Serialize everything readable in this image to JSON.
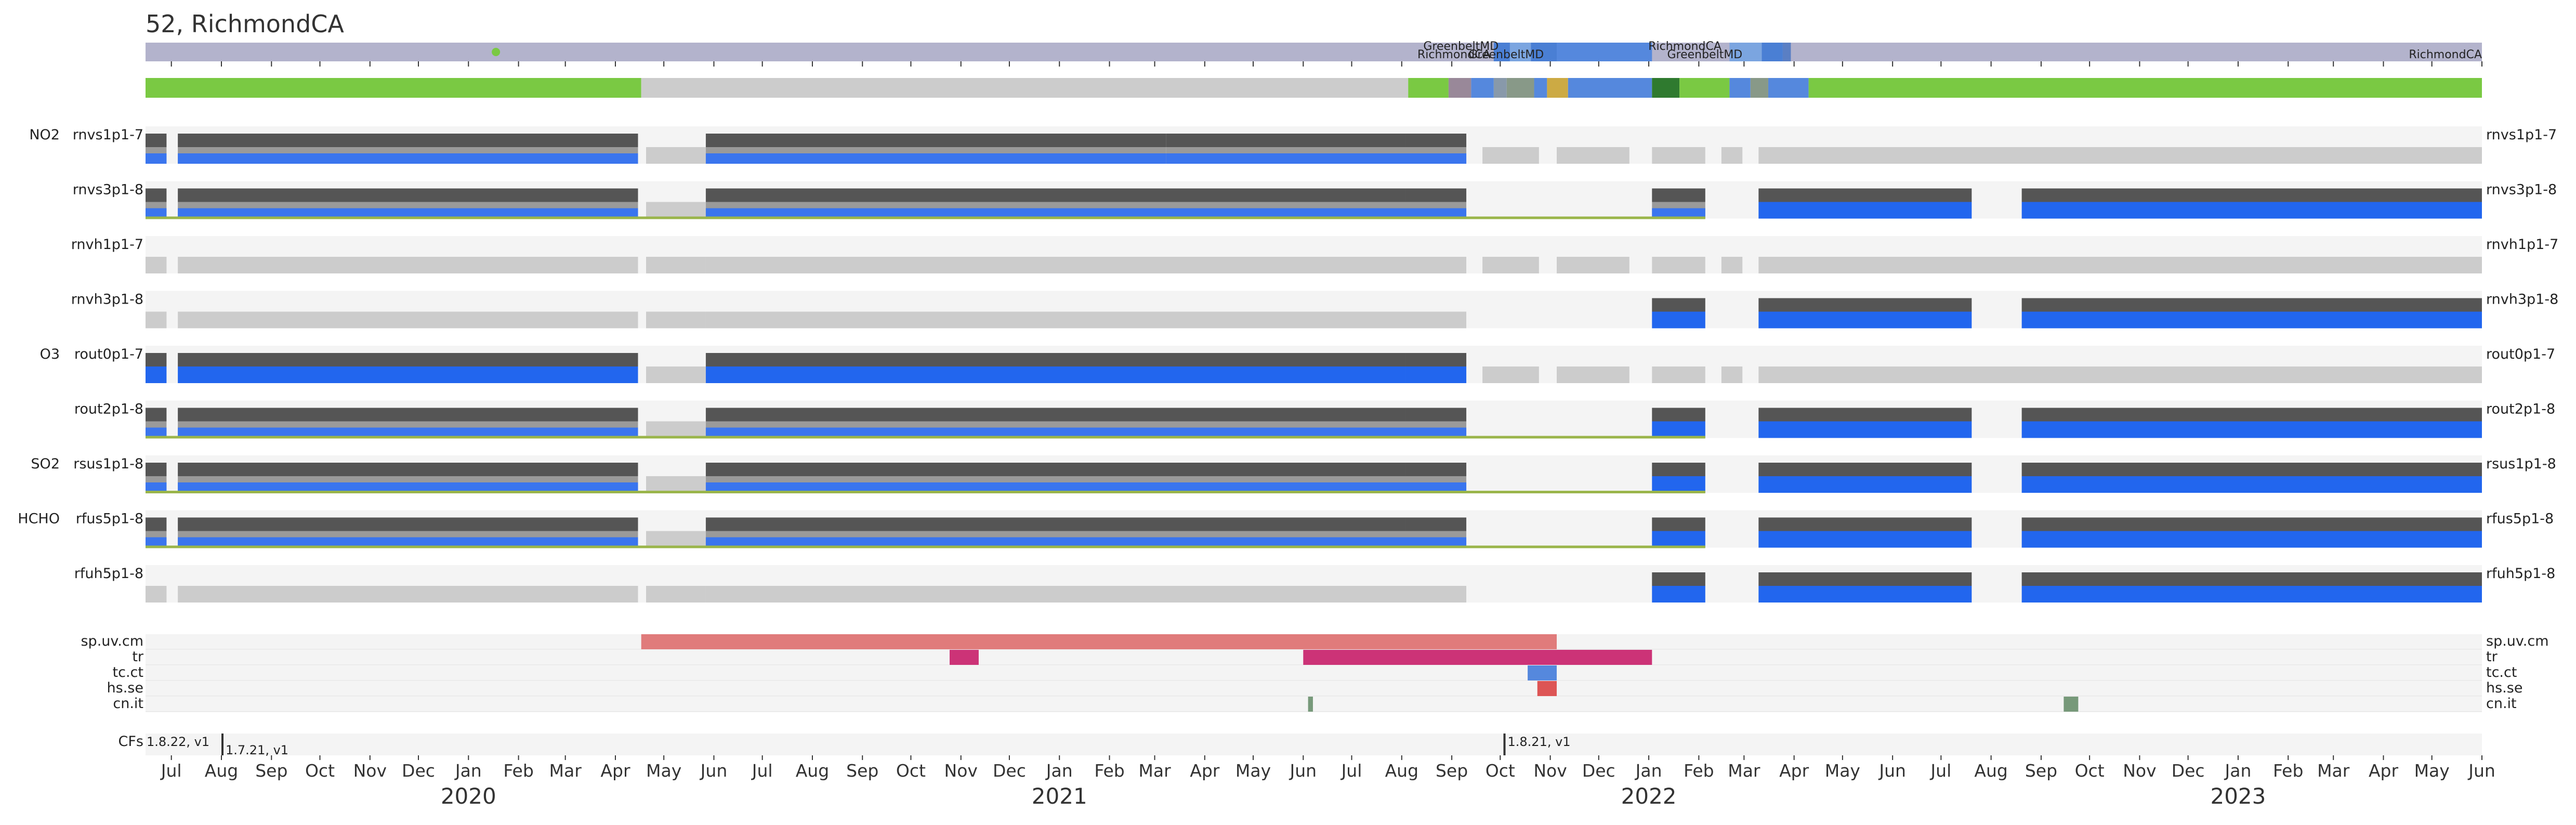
{
  "title": "52, RichmondCA",
  "chart_data": {
    "type": "timeline",
    "title": "52, RichmondCA",
    "x_axis": {
      "start": "2019-06-15",
      "end": "2023-06-01",
      "month_ticks": [
        {
          "date": "2019-07-01",
          "label": "Jul"
        },
        {
          "date": "2019-08-01",
          "label": "Aug"
        },
        {
          "date": "2019-09-01",
          "label": "Sep"
        },
        {
          "date": "2019-10-01",
          "label": "Oct"
        },
        {
          "date": "2019-11-01",
          "label": "Nov"
        },
        {
          "date": "2019-12-01",
          "label": "Dec"
        },
        {
          "date": "2020-01-01",
          "label": "Jan"
        },
        {
          "date": "2020-02-01",
          "label": "Feb"
        },
        {
          "date": "2020-03-01",
          "label": "Mar"
        },
        {
          "date": "2020-04-01",
          "label": "Apr"
        },
        {
          "date": "2020-05-01",
          "label": "May"
        },
        {
          "date": "2020-06-01",
          "label": "Jun"
        },
        {
          "date": "2020-07-01",
          "label": "Jul"
        },
        {
          "date": "2020-08-01",
          "label": "Aug"
        },
        {
          "date": "2020-09-01",
          "label": "Sep"
        },
        {
          "date": "2020-10-01",
          "label": "Oct"
        },
        {
          "date": "2020-11-01",
          "label": "Nov"
        },
        {
          "date": "2020-12-01",
          "label": "Dec"
        },
        {
          "date": "2021-01-01",
          "label": "Jan"
        },
        {
          "date": "2021-02-01",
          "label": "Feb"
        },
        {
          "date": "2021-03-01",
          "label": "Mar"
        },
        {
          "date": "2021-04-01",
          "label": "Apr"
        },
        {
          "date": "2021-05-01",
          "label": "May"
        },
        {
          "date": "2021-06-01",
          "label": "Jun"
        },
        {
          "date": "2021-07-01",
          "label": "Jul"
        },
        {
          "date": "2021-08-01",
          "label": "Aug"
        },
        {
          "date": "2021-09-01",
          "label": "Sep"
        },
        {
          "date": "2021-10-01",
          "label": "Oct"
        },
        {
          "date": "2021-11-01",
          "label": "Nov"
        },
        {
          "date": "2021-12-01",
          "label": "Dec"
        },
        {
          "date": "2022-01-01",
          "label": "Jan"
        },
        {
          "date": "2022-02-01",
          "label": "Feb"
        },
        {
          "date": "2022-03-01",
          "label": "Mar"
        },
        {
          "date": "2022-04-01",
          "label": "Apr"
        },
        {
          "date": "2022-05-01",
          "label": "May"
        },
        {
          "date": "2022-06-01",
          "label": "Jun"
        },
        {
          "date": "2022-07-01",
          "label": "Jul"
        },
        {
          "date": "2022-08-01",
          "label": "Aug"
        },
        {
          "date": "2022-09-01",
          "label": "Sep"
        },
        {
          "date": "2022-10-01",
          "label": "Oct"
        },
        {
          "date": "2022-11-01",
          "label": "Nov"
        },
        {
          "date": "2022-12-01",
          "label": "Dec"
        },
        {
          "date": "2023-01-01",
          "label": "Jan"
        },
        {
          "date": "2023-02-01",
          "label": "Feb"
        },
        {
          "date": "2023-03-01",
          "label": "Mar"
        },
        {
          "date": "2023-04-01",
          "label": "Apr"
        },
        {
          "date": "2023-05-01",
          "label": "May"
        },
        {
          "date": "2023-06-01",
          "label": "Jun"
        }
      ],
      "year_labels": [
        {
          "date": "2020-01-01",
          "label": "2020"
        },
        {
          "date": "2021-01-01",
          "label": "2021"
        },
        {
          "date": "2022-01-01",
          "label": "2022"
        },
        {
          "date": "2023-01-01",
          "label": "2023"
        }
      ]
    },
    "location_bar": {
      "base_color": "#b3b3cc",
      "segments": [
        {
          "start": "2021-09-27",
          "end": "2021-10-07",
          "color": "#4a7fd4"
        },
        {
          "start": "2021-10-07",
          "end": "2021-10-20",
          "color": "#7ba5e0"
        },
        {
          "start": "2021-10-20",
          "end": "2021-11-05",
          "color": "#4a7fd4"
        },
        {
          "start": "2021-11-05",
          "end": "2022-01-03",
          "color": "#5588dd"
        },
        {
          "start": "2022-02-20",
          "end": "2022-03-12",
          "color": "#7ba5e0"
        },
        {
          "start": "2022-03-12",
          "end": "2022-03-25",
          "color": "#4a7fd4"
        },
        {
          "start": "2022-03-25",
          "end": "2022-03-30",
          "color": "#5a7fc4"
        }
      ],
      "labels": [
        {
          "date": "2021-09-30",
          "text": "GreenbeltMD",
          "row": 0
        },
        {
          "date": "2021-09-25",
          "text": "RichmondCA",
          "row": 1
        },
        {
          "date": "2021-10-28",
          "text": "GreenbeltMD",
          "row": 1
        },
        {
          "date": "2022-02-15",
          "text": "RichmondCA",
          "row": 0
        },
        {
          "date": "2022-02-28",
          "text": "GreenbeltMD",
          "row": 1
        },
        {
          "date": "2023-06-01",
          "text": "RichmondCA",
          "row": 1
        }
      ],
      "marker": {
        "date": "2020-01-18",
        "color": "#7ac943"
      }
    },
    "status_bar": {
      "segments": [
        {
          "start": "2019-06-15",
          "end": "2020-04-17",
          "color": "#7ac943"
        },
        {
          "start": "2020-04-17",
          "end": "2021-08-05",
          "color": "#cccccc"
        },
        {
          "start": "2021-08-05",
          "end": "2021-08-30",
          "color": "#7ac943"
        },
        {
          "start": "2021-08-30",
          "end": "2021-09-13",
          "color": "#998899"
        },
        {
          "start": "2021-09-13",
          "end": "2021-09-27",
          "color": "#5588dd"
        },
        {
          "start": "2021-09-27",
          "end": "2021-10-05",
          "color": "#8899aa"
        },
        {
          "start": "2021-10-05",
          "end": "2021-10-22",
          "color": "#889988"
        },
        {
          "start": "2021-10-22",
          "end": "2021-10-30",
          "color": "#5588dd"
        },
        {
          "start": "2021-10-30",
          "end": "2021-11-12",
          "color": "#ccaa44"
        },
        {
          "start": "2021-11-12",
          "end": "2022-01-03",
          "color": "#5588dd"
        },
        {
          "start": "2022-01-03",
          "end": "2022-01-20",
          "color": "#2f7a2f"
        },
        {
          "start": "2022-01-20",
          "end": "2022-02-20",
          "color": "#7ac943"
        },
        {
          "start": "2022-02-20",
          "end": "2022-03-05",
          "color": "#5588dd"
        },
        {
          "start": "2022-03-05",
          "end": "2022-03-16",
          "color": "#889988"
        },
        {
          "start": "2022-03-16",
          "end": "2022-04-10",
          "color": "#5588dd"
        },
        {
          "start": "2022-04-10",
          "end": "2023-06-01",
          "color": "#7ac943"
        }
      ]
    },
    "instrument_rows": [
      {
        "group": "NO2",
        "name": "rnvs1p1-7",
        "style": "full",
        "segments": [
          [
            "2019-06-15",
            "2019-06-28",
            "mixed"
          ],
          [
            "2019-07-05",
            "2020-04-15",
            "mixed"
          ],
          [
            "2020-04-20",
            "2020-05-27",
            "light"
          ],
          [
            "2020-05-27",
            "2021-03-08",
            "mixed"
          ],
          [
            "2021-03-08",
            "2021-08-03",
            "mixed"
          ],
          [
            "2021-08-03",
            "2021-09-10",
            "mixed"
          ],
          [
            "2021-09-20",
            "2021-10-25",
            "light"
          ],
          [
            "2021-11-05",
            "2021-12-20",
            "light"
          ],
          [
            "2022-01-03",
            "2022-02-05",
            "light"
          ],
          [
            "2022-02-15",
            "2022-02-28",
            "light"
          ],
          [
            "2022-03-10",
            "2023-06-01",
            "light"
          ]
        ],
        "underline": []
      },
      {
        "group": "",
        "name": "rnvs3p1-8",
        "style": "full",
        "segments": [
          [
            "2019-06-15",
            "2019-06-28",
            "mixed"
          ],
          [
            "2019-07-05",
            "2020-04-15",
            "mixed"
          ],
          [
            "2020-04-20",
            "2020-05-27",
            "light"
          ],
          [
            "2020-05-27",
            "2021-08-03",
            "mixed"
          ],
          [
            "2021-08-03",
            "2021-09-10",
            "mixed"
          ],
          [
            "2022-01-03",
            "2022-02-05",
            "mixed"
          ],
          [
            "2022-03-10",
            "2022-07-20",
            "blue"
          ],
          [
            "2022-08-20",
            "2023-06-01",
            "blue"
          ]
        ],
        "underline": [
          [
            "2019-06-15",
            "2022-02-05"
          ]
        ]
      },
      {
        "group": "",
        "name": "rnvh1p1-7",
        "style": "light",
        "segments": [
          [
            "2019-06-15",
            "2019-06-28",
            "light"
          ],
          [
            "2019-07-05",
            "2020-04-15",
            "light"
          ],
          [
            "2020-04-20",
            "2020-05-27",
            "light"
          ],
          [
            "2020-05-27",
            "2021-08-03",
            "light"
          ],
          [
            "2021-08-03",
            "2021-09-10",
            "light"
          ],
          [
            "2021-09-20",
            "2021-10-25",
            "light"
          ],
          [
            "2021-11-05",
            "2021-12-20",
            "light"
          ],
          [
            "2022-01-03",
            "2022-02-05",
            "light"
          ],
          [
            "2022-02-15",
            "2022-02-28",
            "light"
          ],
          [
            "2022-03-10",
            "2023-06-01",
            "light"
          ]
        ],
        "underline": []
      },
      {
        "group": "",
        "name": "rnvh3p1-8",
        "style": "light",
        "segments": [
          [
            "2019-06-15",
            "2019-06-28",
            "light"
          ],
          [
            "2019-07-05",
            "2020-04-15",
            "light"
          ],
          [
            "2020-04-20",
            "2020-05-27",
            "light"
          ],
          [
            "2020-05-27",
            "2021-08-03",
            "light"
          ],
          [
            "2021-08-03",
            "2021-09-10",
            "light"
          ],
          [
            "2022-01-03",
            "2022-02-05",
            "blue"
          ],
          [
            "2022-03-10",
            "2022-07-20",
            "blue"
          ],
          [
            "2022-08-20",
            "2023-06-01",
            "blue"
          ]
        ],
        "underline": []
      },
      {
        "group": "O3",
        "name": "rout0p1-7",
        "style": "full",
        "segments": [
          [
            "2019-06-15",
            "2019-06-28",
            "blue"
          ],
          [
            "2019-07-05",
            "2020-04-15",
            "blue"
          ],
          [
            "2020-04-20",
            "2020-05-27",
            "light"
          ],
          [
            "2020-05-27",
            "2021-08-03",
            "blue"
          ],
          [
            "2021-08-03",
            "2021-09-10",
            "blue"
          ],
          [
            "2021-09-20",
            "2021-10-25",
            "light"
          ],
          [
            "2021-11-05",
            "2021-12-20",
            "light"
          ],
          [
            "2022-01-03",
            "2022-02-05",
            "light"
          ],
          [
            "2022-02-15",
            "2022-02-28",
            "light"
          ],
          [
            "2022-03-10",
            "2023-06-01",
            "light"
          ]
        ],
        "underline": []
      },
      {
        "group": "",
        "name": "rout2p1-8",
        "style": "full",
        "segments": [
          [
            "2019-06-15",
            "2019-06-28",
            "mixed"
          ],
          [
            "2019-07-05",
            "2020-04-15",
            "mixed"
          ],
          [
            "2020-04-20",
            "2020-05-27",
            "light"
          ],
          [
            "2020-05-27",
            "2021-08-03",
            "mixed"
          ],
          [
            "2021-08-03",
            "2021-09-10",
            "mixed"
          ],
          [
            "2022-01-03",
            "2022-02-05",
            "blue"
          ],
          [
            "2022-03-10",
            "2022-07-20",
            "blue"
          ],
          [
            "2022-08-20",
            "2023-06-01",
            "blue"
          ]
        ],
        "underline": [
          [
            "2019-06-15",
            "2022-02-05"
          ]
        ]
      },
      {
        "group": "SO2",
        "name": "rsus1p1-8",
        "style": "full",
        "segments": [
          [
            "2019-06-15",
            "2019-06-28",
            "mixed"
          ],
          [
            "2019-07-05",
            "2020-04-15",
            "mixed"
          ],
          [
            "2020-04-20",
            "2020-05-27",
            "light"
          ],
          [
            "2020-05-27",
            "2021-08-03",
            "mixed"
          ],
          [
            "2021-08-03",
            "2021-09-10",
            "mixed"
          ],
          [
            "2022-01-03",
            "2022-02-05",
            "blue"
          ],
          [
            "2022-03-10",
            "2022-07-20",
            "blue"
          ],
          [
            "2022-08-20",
            "2023-06-01",
            "blue"
          ]
        ],
        "underline": [
          [
            "2019-06-15",
            "2022-02-05"
          ]
        ]
      },
      {
        "group": "HCHO",
        "name": "rfus5p1-8",
        "style": "full",
        "segments": [
          [
            "2019-06-15",
            "2019-06-28",
            "mixed"
          ],
          [
            "2019-07-05",
            "2020-04-15",
            "mixed"
          ],
          [
            "2020-04-20",
            "2020-05-27",
            "light"
          ],
          [
            "2020-05-27",
            "2021-08-03",
            "mixed"
          ],
          [
            "2021-08-03",
            "2021-09-10",
            "mixed"
          ],
          [
            "2022-01-03",
            "2022-02-05",
            "blue"
          ],
          [
            "2022-03-10",
            "2022-07-20",
            "blue"
          ],
          [
            "2022-08-20",
            "2023-06-01",
            "blue"
          ]
        ],
        "underline": [
          [
            "2019-06-15",
            "2022-02-05"
          ]
        ]
      },
      {
        "group": "",
        "name": "rfuh5p1-8",
        "style": "light",
        "segments": [
          [
            "2019-06-15",
            "2019-06-28",
            "light"
          ],
          [
            "2019-07-05",
            "2020-04-15",
            "light"
          ],
          [
            "2020-04-20",
            "2020-05-27",
            "light"
          ],
          [
            "2020-05-27",
            "2021-08-03",
            "light"
          ],
          [
            "2021-08-03",
            "2021-09-10",
            "light"
          ],
          [
            "2022-01-03",
            "2022-02-05",
            "blue"
          ],
          [
            "2022-03-10",
            "2022-07-20",
            "blue"
          ],
          [
            "2022-08-20",
            "2023-06-01",
            "blue"
          ]
        ],
        "underline": []
      }
    ],
    "flag_rows": [
      {
        "name": "sp.uv.cm",
        "bars": [
          {
            "start": "2020-04-17",
            "end": "2021-11-05",
            "color": "#e07b7b"
          }
        ]
      },
      {
        "name": "tr",
        "bars": [
          {
            "start": "2020-10-25",
            "end": "2020-11-12",
            "color": "#cc3377"
          },
          {
            "start": "2021-06-01",
            "end": "2022-01-03",
            "color": "#cc3377"
          }
        ]
      },
      {
        "name": "tc.ct",
        "bars": [
          {
            "start": "2021-10-18",
            "end": "2021-11-05",
            "color": "#5588dd"
          }
        ]
      },
      {
        "name": "hs.se",
        "bars": [
          {
            "start": "2021-10-24",
            "end": "2021-11-05",
            "color": "#dd5555"
          }
        ]
      },
      {
        "name": "cn.it",
        "bars": [
          {
            "start": "2021-06-04",
            "end": "2021-06-07",
            "color": "#77997a"
          },
          {
            "start": "2022-09-15",
            "end": "2022-09-24",
            "color": "#77997a"
          }
        ]
      }
    ],
    "cfs": {
      "label": "CFs",
      "entries": [
        {
          "date": "2019-06-15",
          "text": "1.8.22, v1",
          "row": 0,
          "marker": false
        },
        {
          "date": "2019-08-01",
          "text": "1.7.21, v1",
          "row": 1,
          "marker": true
        },
        {
          "date": "2021-10-03",
          "text": "1.8.21, v1",
          "row": 0,
          "marker": true
        }
      ]
    }
  }
}
